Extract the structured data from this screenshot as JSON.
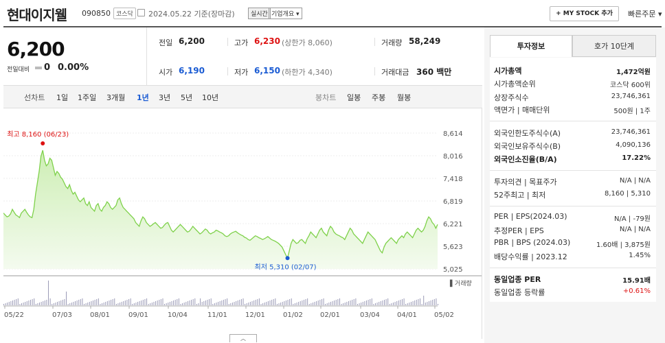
{
  "header": {
    "title": "현대이지웰",
    "code": "090850",
    "market": "코스닥",
    "date": "2024.05.22  기준(장마감)",
    "realtime": "실시간",
    "company_info": "기업개요",
    "mystock": "+ MY STOCK 추가",
    "quick_order": "빠른주문"
  },
  "summary": {
    "price": "6,200",
    "change_label": "전일대비",
    "change_value": "0",
    "change_pct": "0.00%",
    "prev_label": "전일",
    "prev_value": "6,200",
    "high_label": "고가",
    "high_value": "6,230",
    "upper_limit": "(상한가 8,060)",
    "volume_label": "거래량",
    "volume_value": "58,249",
    "open_label": "시가",
    "open_value": "6,190",
    "low_label": "저가",
    "low_value": "6,150",
    "lower_limit": "(하한가 4,340)",
    "amount_label": "거래대금",
    "amount_value": "360 백만"
  },
  "range_bar": {
    "line_chart": "선차트",
    "ranges": [
      "1일",
      "1주일",
      "3개월",
      "1년",
      "3년",
      "5년",
      "10년"
    ],
    "selected": "1년",
    "candle_chart": "봉차트",
    "candles": [
      "일봉",
      "주봉",
      "월봉"
    ]
  },
  "chart_data": {
    "type": "area",
    "y_ticks": [
      "8,614",
      "8,016",
      "7,418",
      "6,819",
      "6,221",
      "5,623",
      "5,025"
    ],
    "ylim": [
      5025,
      8614
    ],
    "x_ticks": [
      "05/22",
      "07/03",
      "08/01",
      "09/01",
      "10/04",
      "11/01",
      "12/01",
      "01/02",
      "02/01",
      "03/04",
      "04/01",
      "05/02"
    ],
    "max_label": "최고 8,160 (06/23)",
    "min_label": "최저 5,310 (02/07)",
    "volume_legend": "거래량",
    "values": [
      6500,
      6450,
      6400,
      6420,
      6480,
      6600,
      6520,
      6450,
      6420,
      6380,
      6500,
      6550,
      6600,
      6520,
      6450,
      6400,
      6380,
      6600,
      7000,
      7300,
      7600,
      8000,
      8160,
      7900,
      7750,
      7800,
      7950,
      7900,
      7700,
      7500,
      7600,
      7550,
      7450,
      7400,
      7300,
      7200,
      7150,
      7250,
      7100,
      7000,
      7050,
      6950,
      6850,
      6800,
      6850,
      6900,
      6750,
      6700,
      6800,
      6650,
      6600,
      6550,
      6700,
      6750,
      6600,
      6550,
      6650,
      6700,
      6800,
      6750,
      6650,
      6600,
      6650,
      6700,
      6850,
      6900,
      6750,
      6650,
      6600,
      6550,
      6500,
      6450,
      6400,
      6350,
      6250,
      6200,
      6150,
      6300,
      6400,
      6350,
      6250,
      6200,
      6150,
      6180,
      6220,
      6250,
      6200,
      6150,
      6100,
      6120,
      6180,
      6230,
      6250,
      6150,
      6050,
      6000,
      6050,
      6100,
      6150,
      6200,
      6150,
      6100,
      6050,
      6000,
      6020,
      6080,
      6150,
      6100,
      6050,
      6000,
      5950,
      5980,
      6030,
      6080,
      6050,
      5980,
      5950,
      5980,
      6000,
      6050,
      6030,
      6000,
      5980,
      5950,
      5900,
      5880,
      5900,
      5950,
      5980,
      6000,
      6020,
      5980,
      5950,
      5920,
      5900,
      5860,
      5840,
      5800,
      5780,
      5820,
      5860,
      5900,
      5880,
      5850,
      5830,
      5800,
      5820,
      5850,
      5880,
      5840,
      5800,
      5780,
      5760,
      5730,
      5700,
      5650,
      5600,
      5500,
      5400,
      5310,
      5500,
      5700,
      5800,
      5750,
      5700,
      5720,
      5780,
      5800,
      5750,
      5700,
      5820,
      5900,
      6000,
      5950,
      5900,
      5850,
      5950,
      6050,
      6100,
      6000,
      5950,
      5900,
      6050,
      6150,
      6100,
      6000,
      5950,
      5920,
      5900,
      5870,
      5850,
      5800,
      5900,
      6000,
      6100,
      6050,
      5950,
      5900,
      5850,
      5800,
      5750,
      5700,
      5800,
      5900,
      6000,
      5950,
      5900,
      5850,
      5800,
      5700,
      5600,
      5500,
      5450,
      5600,
      5700,
      5750,
      5800,
      5850,
      5800,
      5750,
      5700,
      5800,
      5850,
      5900,
      5850,
      5950,
      6000,
      5950,
      5900,
      5850,
      5950,
      6050,
      6100,
      6050,
      6000,
      6050,
      6150,
      6300,
      6400,
      6350,
      6250,
      6200,
      6100,
      6200
    ]
  },
  "right_panel": {
    "tab_invest": "투자정보",
    "tab_quote": "호가 10단계",
    "rows": [
      {
        "label": "시가총액",
        "value": "1,472억원",
        "bold": true
      },
      {
        "label": "시가총액순위",
        "value": "코스닥 600위"
      },
      {
        "label": "상장주식수",
        "value": "23,746,361"
      },
      {
        "label": "액면가 | 매매단위",
        "value": "500원 | 1주"
      },
      {
        "label": "외국인한도주식수(A)",
        "value": "23,746,361"
      },
      {
        "label": "외국인보유주식수(B)",
        "value": "4,090,136"
      },
      {
        "label": "외국인소진율(B/A)",
        "value": "17.22%",
        "bold": true
      },
      {
        "label": "투자의견 | 목표주가",
        "value": "N/A | N/A"
      },
      {
        "label": "52주최고 | 최저",
        "value": "8,160 | 5,310"
      },
      {
        "label": "PER | EPS(2024.03)",
        "value": "N/A | -79원"
      },
      {
        "label": "추정PER | EPS",
        "value": "N/A | N/A"
      },
      {
        "label": "PBR | BPS (2024.03)",
        "value": "1.60배 | 3,875원"
      },
      {
        "label": "배당수익률 | 2023.12",
        "value": "1.45%"
      },
      {
        "label": "동일업종 PER",
        "value": "15.91배",
        "bold": true
      },
      {
        "label": "동일업종 등락률",
        "value": "+0.61%",
        "red": true
      }
    ]
  },
  "colors": {
    "accent_red": "#dd1111",
    "accent_blue": "#1a5bd3",
    "area_fill": "#e6f7d9",
    "line": "#7ed14a"
  }
}
